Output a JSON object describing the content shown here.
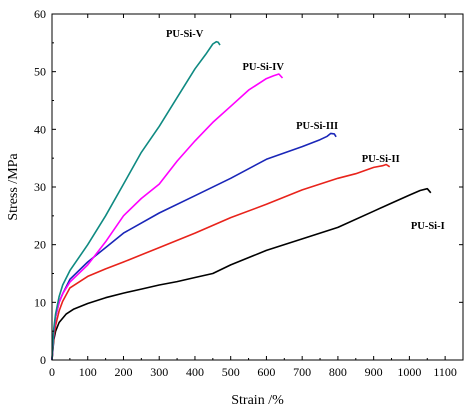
{
  "chart_data": {
    "type": "line",
    "xlabel": "Strain /%",
    "ylabel": "Stress /MPa",
    "xlim": [
      0,
      1150
    ],
    "ylim": [
      0,
      60
    ],
    "xticks": [
      0,
      100,
      200,
      300,
      400,
      500,
      600,
      700,
      800,
      900,
      1000,
      1100
    ],
    "yticks": [
      0,
      10,
      20,
      30,
      40,
      50,
      60
    ],
    "grid": false,
    "legend": "none",
    "series": [
      {
        "name": "PU-Si-I",
        "color": "#000000",
        "x": [
          0,
          5,
          10,
          20,
          40,
          60,
          100,
          150,
          200,
          250,
          300,
          350,
          400,
          450,
          500,
          600,
          700,
          800,
          900,
          950,
          1000,
          1030,
          1050,
          1060
        ],
        "y": [
          0,
          3.5,
          5,
          6.5,
          8,
          8.8,
          9.8,
          10.8,
          11.6,
          12.3,
          13,
          13.6,
          14.3,
          15,
          16.5,
          19,
          21,
          23,
          25.8,
          27.2,
          28.6,
          29.4,
          29.7,
          29
        ]
      },
      {
        "name": "PU-Si-II",
        "color": "#e8231b",
        "x": [
          0,
          5,
          10,
          20,
          30,
          50,
          100,
          150,
          200,
          300,
          400,
          500,
          600,
          700,
          800,
          850,
          900,
          925,
          935,
          945
        ],
        "y": [
          0,
          4,
          6,
          8.5,
          10.2,
          12.5,
          14.5,
          15.8,
          17,
          19.5,
          22,
          24.7,
          27,
          29.5,
          31.5,
          32.3,
          33.4,
          33.7,
          33.9,
          33.5
        ]
      },
      {
        "name": "PU-Si-III",
        "color": "#1a26b8",
        "x": [
          0,
          5,
          10,
          20,
          30,
          50,
          100,
          150,
          200,
          300,
          400,
          500,
          600,
          700,
          750,
          770,
          780,
          790,
          795
        ],
        "y": [
          0,
          5,
          7.5,
          10,
          11.5,
          14,
          17,
          19.5,
          22,
          25.5,
          28.5,
          31.5,
          34.8,
          37,
          38.2,
          38.8,
          39.3,
          39.2,
          38.7
        ]
      },
      {
        "name": "PU-Si-IV",
        "color": "#ff00ff",
        "x": [
          0,
          5,
          10,
          20,
          30,
          50,
          100,
          150,
          200,
          250,
          300,
          350,
          400,
          450,
          500,
          550,
          600,
          620,
          635,
          645
        ],
        "y": [
          0,
          5,
          7.5,
          10,
          11.5,
          13.5,
          16.5,
          20.5,
          25,
          28,
          30.5,
          34.5,
          38,
          41.2,
          44,
          46.8,
          48.8,
          49.3,
          49.6,
          48.9
        ]
      },
      {
        "name": "PU-Si-V",
        "color": "#0f8a82",
        "x": [
          0,
          5,
          10,
          20,
          30,
          50,
          100,
          150,
          200,
          250,
          300,
          350,
          400,
          430,
          450,
          460,
          465,
          470
        ],
        "y": [
          0,
          5.5,
          8,
          11,
          13,
          15.5,
          20,
          25,
          30.5,
          36,
          40.5,
          45.5,
          50.5,
          53,
          54.8,
          55.2,
          55.1,
          54.6
        ]
      }
    ]
  }
}
